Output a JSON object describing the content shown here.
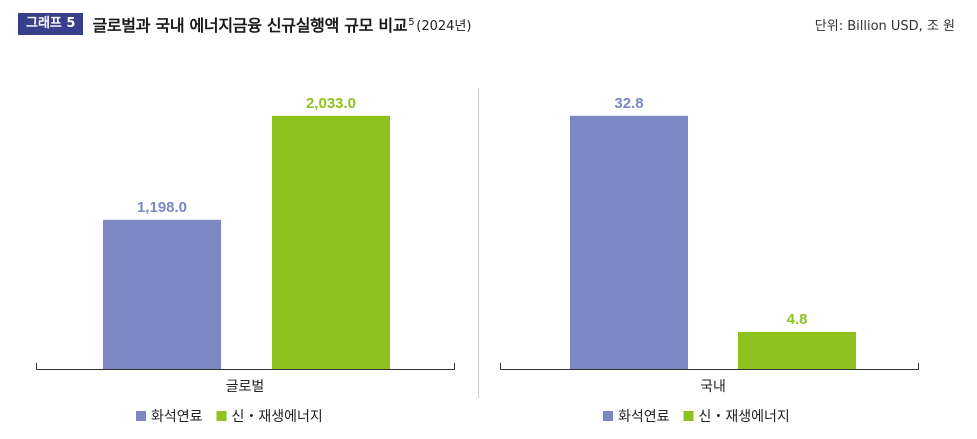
{
  "header": {
    "badge": "그래프 5",
    "title": "글로벌과 국내 에너지금융 신규실행액 규모 비교",
    "footnote": "5",
    "year": "(2024년)",
    "unit": "단위: Billion USD, 조 원"
  },
  "colors": {
    "fossil": "#7b88c4",
    "renewable": "#8dc21f",
    "badge": "#3a3f8c"
  },
  "chart_data": [
    {
      "type": "bar",
      "categories": [
        "글로벌"
      ],
      "series": [
        {
          "name": "화석연료",
          "values": [
            1198.0
          ],
          "label": "1,198.0"
        },
        {
          "name": "신・재생에너지",
          "values": [
            2033.0
          ],
          "label": "2,033.0"
        }
      ],
      "ylim": [
        0,
        2200
      ],
      "legend": "bottom"
    },
    {
      "type": "bar",
      "categories": [
        "국내"
      ],
      "series": [
        {
          "name": "화석연료",
          "values": [
            32.8
          ],
          "label": "32.8"
        },
        {
          "name": "신・재생에너지",
          "values": [
            4.8
          ],
          "label": "4.8"
        }
      ],
      "ylim": [
        0,
        35.5
      ],
      "legend": "bottom"
    }
  ]
}
